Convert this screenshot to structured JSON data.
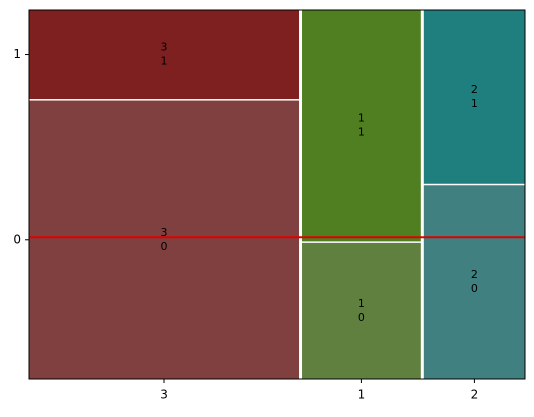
{
  "chart_data": {
    "type": "mosaic",
    "categories": [
      "3",
      "1",
      "2"
    ],
    "series": [
      {
        "name": "0",
        "values": [
          372,
          80,
          97
        ],
        "colors": [
          "#804040",
          "#608040",
          "#408080"
        ]
      },
      {
        "name": "1",
        "values": [
          119,
          136,
          87
        ],
        "colors": [
          "#7f2020",
          "#4f7f20",
          "#1f7f7f"
        ]
      }
    ],
    "ylim": [
      0,
      1
    ],
    "hline": 0.384,
    "hline_color": "#e00000"
  }
}
